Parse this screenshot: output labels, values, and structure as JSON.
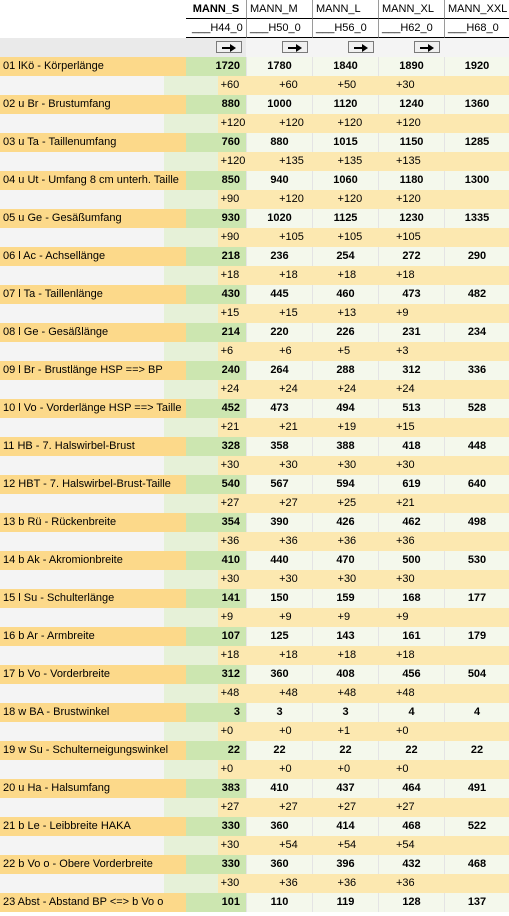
{
  "header": {
    "columns": [
      "MANN_S",
      "MANN_M",
      "MANN_L",
      "MANN_XL",
      "MANN_XXL"
    ],
    "subcodes": [
      "___H44_0",
      "___H50_0",
      "___H56_0",
      "___H62_0",
      "___H68_0"
    ]
  },
  "rows": [
    {
      "label": "01  lKö - Körperlänge",
      "values": [
        "1720",
        "1780",
        "1840",
        "1890",
        "1920"
      ],
      "diffs": [
        "+60",
        "+60",
        "+50",
        "+30"
      ]
    },
    {
      "label": "02  u Br - Brustumfang",
      "values": [
        "880",
        "1000",
        "1120",
        "1240",
        "1360"
      ],
      "diffs": [
        "+120",
        "+120",
        "+120",
        "+120"
      ]
    },
    {
      "label": "03  u Ta - Taillenumfang",
      "values": [
        "760",
        "880",
        "1015",
        "1150",
        "1285"
      ],
      "diffs": [
        "+120",
        "+135",
        "+135",
        "+135"
      ]
    },
    {
      "label": "04  u Ut - Umfang 8 cm unterh. Taille",
      "values": [
        "850",
        "940",
        "1060",
        "1180",
        "1300"
      ],
      "diffs": [
        "+90",
        "+120",
        "+120",
        "+120"
      ]
    },
    {
      "label": "05  u Ge - Gesäßumfang",
      "values": [
        "930",
        "1020",
        "1125",
        "1230",
        "1335"
      ],
      "diffs": [
        "+90",
        "+105",
        "+105",
        "+105"
      ]
    },
    {
      "label": "06  l Ac - Achsellänge",
      "values": [
        "218",
        "236",
        "254",
        "272",
        "290"
      ],
      "diffs": [
        "+18",
        "+18",
        "+18",
        "+18"
      ]
    },
    {
      "label": "07  l Ta - Taillenlänge",
      "values": [
        "430",
        "445",
        "460",
        "473",
        "482"
      ],
      "diffs": [
        "+15",
        "+15",
        "+13",
        "+9"
      ]
    },
    {
      "label": "08  l Ge - Gesäßlänge",
      "values": [
        "214",
        "220",
        "226",
        "231",
        "234"
      ],
      "diffs": [
        "+6",
        "+6",
        "+5",
        "+3"
      ]
    },
    {
      "label": "09  l Br - Brustlänge HSP ==> BP",
      "values": [
        "240",
        "264",
        "288",
        "312",
        "336"
      ],
      "diffs": [
        "+24",
        "+24",
        "+24",
        "+24"
      ]
    },
    {
      "label": "10  l Vo - Vorderlänge HSP ==> Taille",
      "values": [
        "452",
        "473",
        "494",
        "513",
        "528"
      ],
      "diffs": [
        "+21",
        "+21",
        "+19",
        "+15"
      ]
    },
    {
      "label": "11  HB - 7. Halswirbel-Brust",
      "values": [
        "328",
        "358",
        "388",
        "418",
        "448"
      ],
      "diffs": [
        "+30",
        "+30",
        "+30",
        "+30"
      ]
    },
    {
      "label": "12  HBT - 7. Halswirbel-Brust-Taille",
      "values": [
        "540",
        "567",
        "594",
        "619",
        "640"
      ],
      "diffs": [
        "+27",
        "+27",
        "+25",
        "+21"
      ]
    },
    {
      "label": "13  b Rü - Rückenbreite",
      "values": [
        "354",
        "390",
        "426",
        "462",
        "498"
      ],
      "diffs": [
        "+36",
        "+36",
        "+36",
        "+36"
      ]
    },
    {
      "label": "14  b Ak - Akromionbreite",
      "values": [
        "410",
        "440",
        "470",
        "500",
        "530"
      ],
      "diffs": [
        "+30",
        "+30",
        "+30",
        "+30"
      ]
    },
    {
      "label": "15  l Su - Schulterlänge",
      "values": [
        "141",
        "150",
        "159",
        "168",
        "177"
      ],
      "diffs": [
        "+9",
        "+9",
        "+9",
        "+9"
      ]
    },
    {
      "label": "16  b Ar - Armbreite",
      "values": [
        "107",
        "125",
        "143",
        "161",
        "179"
      ],
      "diffs": [
        "+18",
        "+18",
        "+18",
        "+18"
      ]
    },
    {
      "label": "17  b Vo - Vorderbreite",
      "values": [
        "312",
        "360",
        "408",
        "456",
        "504"
      ],
      "diffs": [
        "+48",
        "+48",
        "+48",
        "+48"
      ]
    },
    {
      "label": "18  w BA - Brustwinkel",
      "values": [
        "3",
        "3",
        "3",
        "4",
        "4"
      ],
      "diffs": [
        "+0",
        "+0",
        "+1",
        "+0"
      ]
    },
    {
      "label": "19  w Su - Schulterneigungswinkel",
      "values": [
        "22",
        "22",
        "22",
        "22",
        "22"
      ],
      "diffs": [
        "+0",
        "+0",
        "+0",
        "+0"
      ]
    },
    {
      "label": "20  u Ha - Halsumfang",
      "values": [
        "383",
        "410",
        "437",
        "464",
        "491"
      ],
      "diffs": [
        "+27",
        "+27",
        "+27",
        "+27"
      ]
    },
    {
      "label": "21  b Le - Leibbreite HAKA",
      "values": [
        "330",
        "360",
        "414",
        "468",
        "522"
      ],
      "diffs": [
        "+30",
        "+54",
        "+54",
        "+54"
      ]
    },
    {
      "label": "22  b Vo o - Obere Vorderbreite",
      "values": [
        "330",
        "360",
        "396",
        "432",
        "468"
      ],
      "diffs": [
        "+30",
        "+36",
        "+36",
        "+36"
      ]
    },
    {
      "label": "23  Abst - Abstand BP <=> b Vo o",
      "values": [
        "101",
        "110",
        "119",
        "128",
        "137"
      ],
      "diffs": []
    }
  ],
  "icons": {
    "copy_right": "arrow-right-icon"
  },
  "colors": {
    "label_bg": "#fcd98a",
    "base_bg": "#cce6b0",
    "diff_bg": "#fce8b0"
  }
}
